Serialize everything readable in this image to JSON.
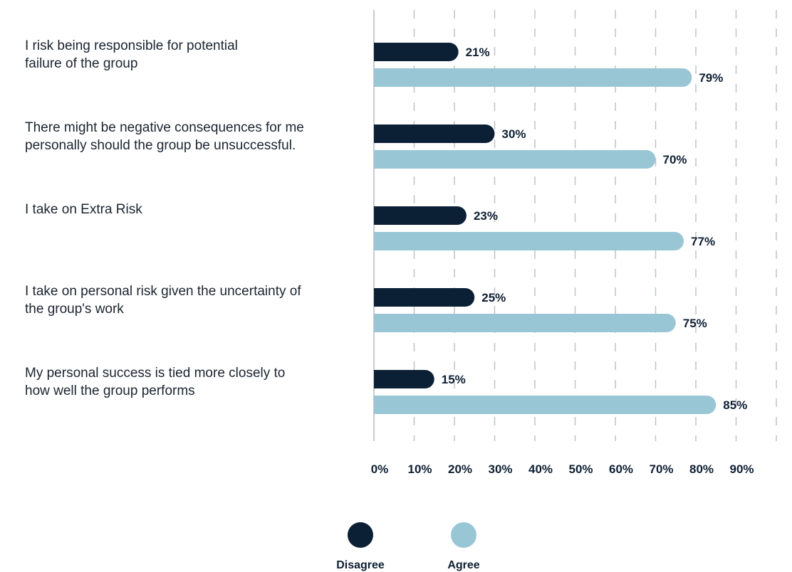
{
  "chart_data": {
    "type": "bar",
    "orientation": "horizontal",
    "categories": [
      [
        "I risk being responsible for potential",
        "failure of the group"
      ],
      [
        "There might be negative consequences for me",
        "personally should the group be unsuccessful."
      ],
      [
        "I take on Extra Risk"
      ],
      [
        "I take on personal risk given the uncertainty of",
        "the group's work"
      ],
      [
        "My personal success is tied more closely to",
        "how well the group performs"
      ]
    ],
    "series": [
      {
        "name": "Disagree",
        "values": [
          21,
          30,
          23,
          25,
          15
        ],
        "color": "#0b1f35"
      },
      {
        "name": "Agree",
        "values": [
          79,
          70,
          77,
          75,
          85
        ],
        "color": "#99c6d5"
      }
    ],
    "value_labels": {
      "Disagree": [
        "21%",
        "30%",
        "23%",
        "25%",
        "15%"
      ],
      "Agree": [
        "79%",
        "70%",
        "77%",
        "75%",
        "85%"
      ]
    },
    "xticks": [
      "0%",
      "10%",
      "20%",
      "30%",
      "40%",
      "50%",
      "60%",
      "70%",
      "80%",
      "90%"
    ],
    "xlim": [
      0,
      100
    ],
    "grid": true,
    "legend_position": "bottom-center",
    "title": "",
    "xlabel": "",
    "ylabel": ""
  }
}
